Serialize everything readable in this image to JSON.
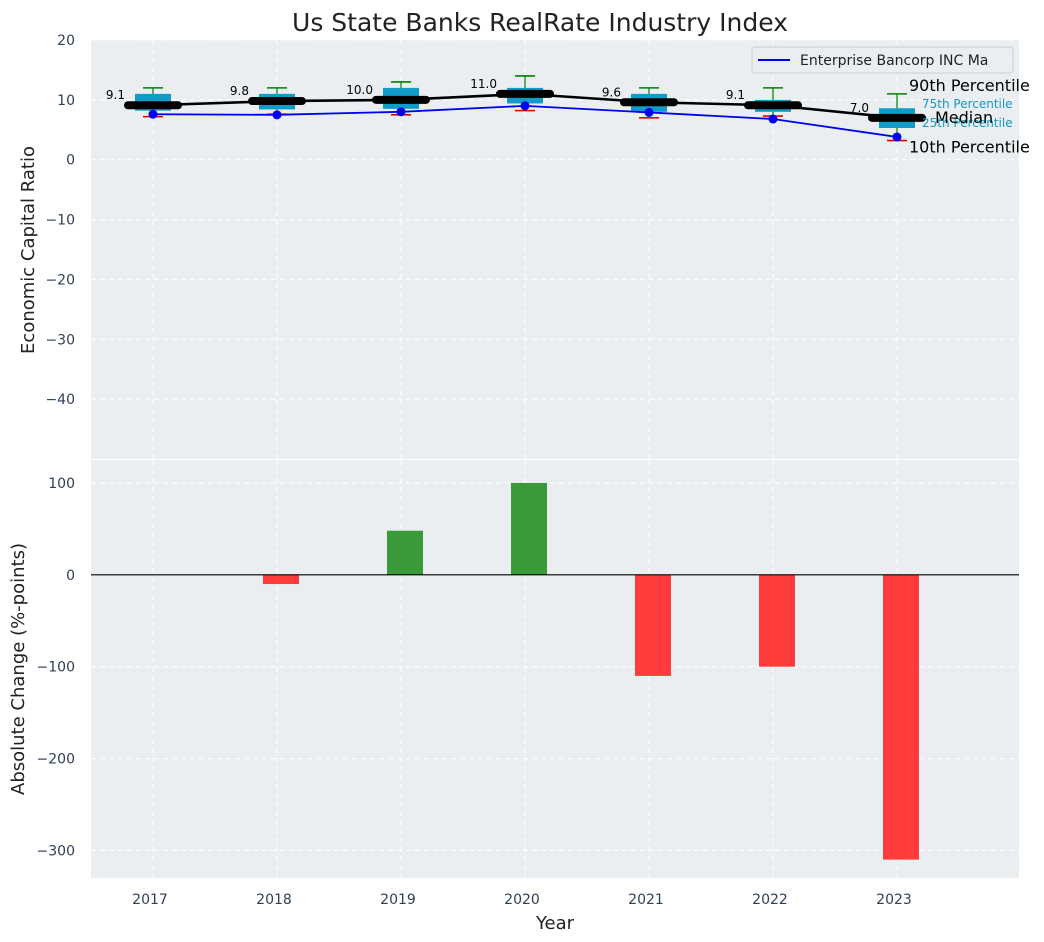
{
  "chart_data": [
    {
      "type": "box",
      "title": "Us State Banks RealRate Industry Index",
      "xlabel": "",
      "ylabel": "Economic Capital Ratio",
      "ylim": [
        -50,
        20
      ],
      "yticks": [
        20,
        10,
        0,
        -10,
        -20,
        -30,
        -40
      ],
      "ytick_labels": [
        "20",
        "10",
        "0",
        "−10",
        "−20",
        "−30",
        "−40"
      ],
      "grid": true,
      "categories": [
        "2017",
        "2018",
        "2019",
        "2020",
        "2021",
        "2022",
        "2023"
      ],
      "boxes": [
        {
          "year": "2017",
          "p10": 7.2,
          "q1": 8.2,
          "median": 9.1,
          "q3": 11.0,
          "p90": 12.0
        },
        {
          "year": "2018",
          "p10": 7.6,
          "q1": 8.4,
          "median": 9.8,
          "q3": 11.0,
          "p90": 12.0
        },
        {
          "year": "2019",
          "p10": 7.5,
          "q1": 8.5,
          "median": 10.0,
          "q3": 12.0,
          "p90": 13.0
        },
        {
          "year": "2020",
          "p10": 8.2,
          "q1": 9.4,
          "median": 11.0,
          "q3": 12.0,
          "p90": 14.0
        },
        {
          "year": "2021",
          "p10": 7.0,
          "q1": 8.0,
          "median": 9.6,
          "q3": 11.0,
          "p90": 12.0
        },
        {
          "year": "2022",
          "p10": 7.3,
          "q1": 8.0,
          "median": 9.1,
          "q3": 10.0,
          "p90": 12.0
        },
        {
          "year": "2023",
          "p10": 3.2,
          "q1": 5.3,
          "median": 7.0,
          "q3": 8.6,
          "p90": 11.0
        }
      ],
      "median_labels": [
        "9.1",
        "9.8",
        "10.0",
        "11.0",
        "9.6",
        "9.1",
        "7.0"
      ],
      "series": [
        {
          "name": "Enterprise Bancorp INC Ma",
          "color": "#0000ee",
          "values": [
            7.6,
            7.5,
            8.0,
            9.0,
            7.9,
            6.8,
            3.8
          ]
        }
      ],
      "legend": {
        "entry": "Enterprise Bancorp INC Ma",
        "placement": "top-right"
      },
      "annotations": {
        "p90": "90th Percentile",
        "p75": "75th Percentile",
        "median": "Median",
        "p25": "25th Percentile",
        "p10": "10th Percentile"
      }
    },
    {
      "type": "bar",
      "title": "",
      "xlabel": "Year",
      "ylabel": "Absolute Change (%-points)",
      "ylim": [
        -330,
        125
      ],
      "yticks": [
        100,
        0,
        -100,
        -200,
        -300
      ],
      "ytick_labels": [
        "100",
        "0",
        "−100",
        "−200",
        "−300"
      ],
      "grid": true,
      "categories": [
        "2017",
        "2018",
        "2019",
        "2020",
        "2021",
        "2022",
        "2023"
      ],
      "values": [
        0,
        -10,
        48,
        100,
        -110,
        -100,
        -310
      ]
    }
  ],
  "colors": {
    "background": "#eaeef0",
    "grid": "#ffffff",
    "box": "#0f9cc8",
    "median": "#000000",
    "whisker": "#008000",
    "p10_cap": "#e00000",
    "series": "#0000ee",
    "positive": "#3a9a3a",
    "negative": "#ff3b3b",
    "axis_text": "#2f3f55",
    "annotation_blue": "#1499c8"
  }
}
